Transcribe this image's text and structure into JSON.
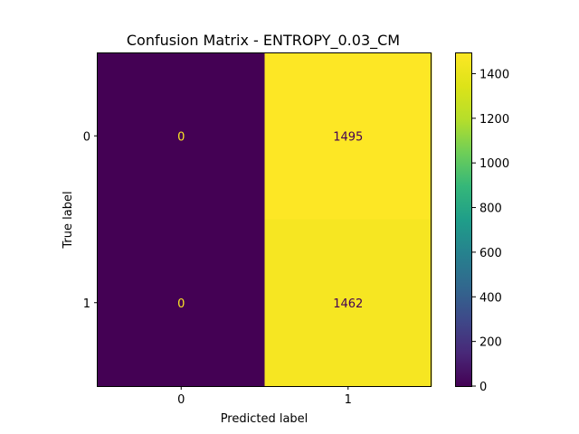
{
  "chart_data": {
    "type": "heatmap",
    "title": "Confusion Matrix - ENTROPY_0.03_CM",
    "xlabel": "Predicted label",
    "ylabel": "True label",
    "x_categories": [
      "0",
      "1"
    ],
    "y_categories": [
      "0",
      "1"
    ],
    "values": [
      [
        0,
        1495
      ],
      [
        0,
        1462
      ]
    ],
    "colormap": "viridis",
    "colorbar": {
      "range": [
        0,
        1495
      ],
      "ticks": [
        0,
        200,
        400,
        600,
        800,
        1000,
        1200,
        1400
      ],
      "tick_labels": [
        "0",
        "200",
        "400",
        "600",
        "800",
        "1000",
        "1200",
        "1400"
      ]
    },
    "cell_text_colors": {
      "on_dark": "#fde725",
      "on_light": "#440154"
    }
  }
}
